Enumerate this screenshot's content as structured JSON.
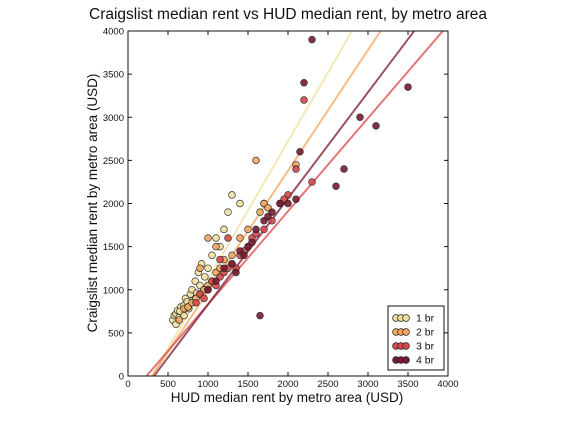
{
  "chart_data": {
    "type": "scatter",
    "title": "Craigslist median rent vs HUD median rent, by metro area",
    "xlabel": "HUD median rent by metro area (USD)",
    "ylabel": "Craigslist median rent by metro area (USD)",
    "xlim": [
      0,
      4000
    ],
    "ylim": [
      0,
      4000
    ],
    "xticks": [
      "0",
      "500",
      "1000",
      "1500",
      "2000",
      "2500",
      "3000",
      "3500",
      "4000"
    ],
    "yticks": [
      "0",
      "500",
      "1000",
      "1500",
      "2000",
      "2500",
      "3000",
      "3500",
      "4000"
    ],
    "grid": false,
    "legend_position": "bottom-right",
    "series": [
      {
        "name": "1 br",
        "color": "#f0e0a0",
        "fit": {
          "slope": 1.6,
          "intercept": -480
        },
        "points": [
          [
            560,
            650
          ],
          [
            580,
            700
          ],
          [
            600,
            720
          ],
          [
            620,
            760
          ],
          [
            640,
            680
          ],
          [
            660,
            800
          ],
          [
            680,
            740
          ],
          [
            700,
            820
          ],
          [
            720,
            900
          ],
          [
            740,
            860
          ],
          [
            760,
            780
          ],
          [
            780,
            950
          ],
          [
            800,
            1000
          ],
          [
            820,
            880
          ],
          [
            840,
            1100
          ],
          [
            860,
            960
          ],
          [
            880,
            1200
          ],
          [
            900,
            1050
          ],
          [
            920,
            1300
          ],
          [
            960,
            1150
          ],
          [
            1000,
            1250
          ],
          [
            1050,
            1400
          ],
          [
            1100,
            1600
          ],
          [
            1150,
            1500
          ],
          [
            1200,
            1700
          ],
          [
            1250,
            1900
          ],
          [
            1300,
            2100
          ],
          [
            1400,
            2000
          ],
          [
            1700,
            2000
          ],
          [
            600,
            600
          ],
          [
            650,
            750
          ],
          [
            700,
            700
          ],
          [
            750,
            800
          ],
          [
            850,
            900
          ],
          [
            950,
            1000
          ]
        ]
      },
      {
        "name": "2 br",
        "color": "#f2a65e",
        "fit": {
          "slope": 1.4,
          "intercept": -420
        },
        "points": [
          [
            640,
            650
          ],
          [
            700,
            780
          ],
          [
            750,
            800
          ],
          [
            800,
            850
          ],
          [
            850,
            900
          ],
          [
            900,
            950
          ],
          [
            950,
            1000
          ],
          [
            1000,
            1050
          ],
          [
            1050,
            1100
          ],
          [
            1100,
            1200
          ],
          [
            1150,
            1250
          ],
          [
            1200,
            1350
          ],
          [
            1300,
            1400
          ],
          [
            1400,
            1600
          ],
          [
            1500,
            1700
          ],
          [
            1600,
            2500
          ],
          [
            1650,
            1900
          ],
          [
            1700,
            2000
          ],
          [
            1750,
            1950
          ],
          [
            2100,
            2450
          ],
          [
            900,
            1250
          ],
          [
            1000,
            1600
          ],
          [
            1100,
            1500
          ]
        ]
      },
      {
        "name": "3 br",
        "color": "#d9484a",
        "fit": {
          "slope": 1.08,
          "intercept": -250
        },
        "points": [
          [
            850,
            850
          ],
          [
            900,
            950
          ],
          [
            950,
            900
          ],
          [
            1000,
            1000
          ],
          [
            1050,
            1100
          ],
          [
            1100,
            1050
          ],
          [
            1150,
            1150
          ],
          [
            1200,
            1200
          ],
          [
            1250,
            1250
          ],
          [
            1300,
            1300
          ],
          [
            1350,
            1250
          ],
          [
            1400,
            1400
          ],
          [
            1450,
            1450
          ],
          [
            1500,
            1500
          ],
          [
            1550,
            1600
          ],
          [
            1600,
            1650
          ],
          [
            1700,
            1700
          ],
          [
            1800,
            1800
          ],
          [
            1900,
            2000
          ],
          [
            2000,
            2100
          ],
          [
            2100,
            2400
          ],
          [
            2200,
            3200
          ],
          [
            2300,
            2250
          ],
          [
            1950,
            2050
          ],
          [
            1250,
            1600
          ],
          [
            1150,
            1350
          ]
        ]
      },
      {
        "name": "4 br",
        "color": "#7a1a30",
        "fit": {
          "slope": 1.23,
          "intercept": -400
        },
        "points": [
          [
            1000,
            1000
          ],
          [
            1100,
            1100
          ],
          [
            1200,
            1250
          ],
          [
            1300,
            1300
          ],
          [
            1400,
            1450
          ],
          [
            1500,
            1500
          ],
          [
            1550,
            1550
          ],
          [
            1600,
            1700
          ],
          [
            1650,
            700
          ],
          [
            1700,
            1800
          ],
          [
            1750,
            1850
          ],
          [
            1800,
            1900
          ],
          [
            1900,
            2000
          ],
          [
            2000,
            2000
          ],
          [
            2100,
            2050
          ],
          [
            2150,
            2600
          ],
          [
            2200,
            3400
          ],
          [
            2300,
            3900
          ],
          [
            2600,
            2200
          ],
          [
            2700,
            2400
          ],
          [
            2900,
            3000
          ],
          [
            3100,
            2900
          ],
          [
            3500,
            3350
          ],
          [
            1350,
            1200
          ],
          [
            1450,
            1400
          ]
        ]
      }
    ]
  }
}
